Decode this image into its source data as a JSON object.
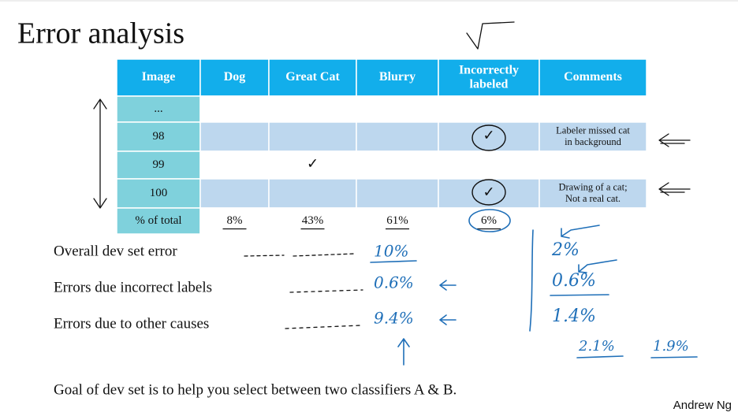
{
  "title": "Error analysis",
  "table": {
    "header": [
      "Image",
      "Dog",
      "Great Cat",
      "Blurry",
      "Incorrectly labeled",
      "Comments"
    ],
    "rows": [
      [
        "...",
        null,
        null,
        null,
        null,
        null
      ],
      [
        "98",
        null,
        null,
        null,
        "✓",
        "Labeler missed cat in background"
      ],
      [
        "99",
        null,
        "✓",
        null,
        null,
        null
      ],
      [
        "100",
        null,
        null,
        null,
        "✓",
        "Drawing of a cat; Not a real cat."
      ],
      [
        "% of total",
        "8%",
        "43%",
        "61%",
        "6%",
        null
      ]
    ]
  },
  "lines": [
    {
      "label": "Overall dev set error",
      "a": "10%",
      "b": "2%"
    },
    {
      "label": "Errors due incorrect labels",
      "a": "0.6%",
      "b": "0.6%"
    },
    {
      "label": "Errors due to other causes",
      "a": "9.4%",
      "b": "1.4%"
    }
  ],
  "extra": [
    "2.1%",
    "1.9%"
  ],
  "goal": "Goal of dev set is to help you select between two classifiers A & B.",
  "author": "Andrew Ng"
}
